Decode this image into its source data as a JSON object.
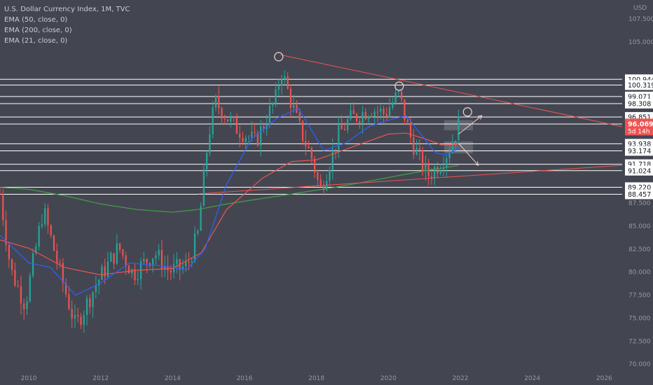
{
  "chart_data": {
    "type": "candlestick",
    "title": "U.S. Dollar Currency Index, 1M, TVC",
    "indicators": [
      "EMA (50, close, 0)",
      "EMA (200, close, 0)",
      "EMA (21, close, 0)"
    ],
    "currency_label": "USD",
    "x_tick_labels": [
      "2010",
      "2012",
      "2014",
      "2016",
      "2018",
      "2020",
      "2022",
      "2024",
      "2026"
    ],
    "x_tick_years": [
      2010,
      2012,
      2014,
      2016,
      2018,
      2020,
      2022,
      2024,
      2026
    ],
    "xlim": [
      2009.2,
      2026.5
    ],
    "y_tick_labels": [
      "107.500",
      "105.000",
      "87.500",
      "85.000",
      "82.500",
      "80.000",
      "77.500",
      "75.000",
      "72.500",
      "70.000"
    ],
    "y_tick_values": [
      107.5,
      105.0,
      87.5,
      85.0,
      82.5,
      80.0,
      77.5,
      75.0,
      72.5,
      70.0
    ],
    "ylim": [
      68.8,
      108.8
    ],
    "horizontal_levels": [
      "100.944",
      "100.319",
      "99.071",
      "98.308",
      "96.851",
      "96.088",
      "93.938",
      "93.174",
      "91.718",
      "91.024",
      "89.220",
      "88.457"
    ],
    "current_price": {
      "label": "96.069",
      "value": 96.069,
      "countdown": "5d 14h",
      "color": "#ef5350"
    },
    "close_series": {
      "years": [
        2009.2,
        2009.5,
        2009.9,
        2010.4,
        2010.9,
        2011.3,
        2011.9,
        2012.5,
        2012.9,
        2013.5,
        2013.9,
        2014.4,
        2014.7,
        2015.0,
        2015.2,
        2015.7,
        2016.3,
        2016.9,
        2017.0,
        2017.5,
        2017.9,
        2018.1,
        2018.6,
        2018.9,
        2019.5,
        2019.9,
        2020.2,
        2020.3,
        2020.6,
        2020.9,
        2021.1,
        2021.3,
        2021.6,
        2021.8,
        2021.95
      ],
      "values": [
        88.5,
        80.2,
        76.5,
        86.8,
        79.5,
        74.1,
        78.9,
        82.7,
        79.8,
        82.1,
        80.1,
        80.6,
        84.1,
        95.0,
        98.4,
        95.9,
        94.1,
        99.1,
        102.2,
        95.9,
        92.1,
        88.8,
        94.8,
        96.5,
        97.8,
        97.2,
        98.9,
        99.2,
        94.8,
        91.9,
        90.5,
        91.3,
        92.8,
        94.3,
        96.07
      ]
    },
    "ema_21": {
      "color": "#2962ff",
      "years": [
        2009.2,
        2010.0,
        2010.6,
        2011.3,
        2012.0,
        2012.8,
        2013.6,
        2014.4,
        2014.9,
        2015.5,
        2016.2,
        2016.9,
        2017.5,
        2018.2,
        2018.8,
        2019.5,
        2020.0,
        2020.5,
        2020.9,
        2021.3,
        2021.6,
        2021.95
      ],
      "values": [
        84.0,
        81.0,
        80.5,
        77.5,
        78.8,
        81.0,
        80.7,
        80.3,
        82.5,
        89.5,
        94.5,
        96.7,
        97.8,
        93.2,
        94.0,
        95.9,
        96.5,
        97.0,
        95.0,
        93.0,
        92.7,
        93.5
      ]
    },
    "ema_50": {
      "color": "#ef5350",
      "years": [
        2009.2,
        2010.0,
        2011.0,
        2012.0,
        2013.0,
        2014.0,
        2014.8,
        2015.5,
        2016.5,
        2017.3,
        2018.0,
        2019.0,
        2020.0,
        2020.5,
        2021.0,
        2021.5,
        2021.95
      ],
      "values": [
        83.5,
        82.6,
        80.5,
        79.7,
        80.2,
        80.4,
        82.1,
        86.8,
        90.2,
        92.0,
        92.2,
        93.6,
        95.0,
        95.1,
        94.5,
        93.8,
        93.9
      ]
    },
    "ema_200": {
      "color": "#43a047",
      "years": [
        2009.2,
        2010.0,
        2011.0,
        2012.0,
        2013.0,
        2014.0,
        2014.7,
        2015.5,
        2016.5,
        2017.5,
        2018.5,
        2019.5,
        2020.3,
        2021.0,
        2021.95
      ],
      "values": [
        89.2,
        89.0,
        88.3,
        87.4,
        86.8,
        86.5,
        86.8,
        87.4,
        88.0,
        88.6,
        89.2,
        89.9,
        90.5,
        91.0,
        91.6
      ]
    },
    "trendlines": {
      "descending_resistance": {
        "color": "#ef5350",
        "start": [
          2017.0,
          103.6
        ],
        "end": [
          2026.5,
          95.8
        ]
      },
      "ascending_support": {
        "color": "#ef5350",
        "start": [
          2014.7,
          88.5
        ],
        "end": [
          2026.5,
          91.6
        ]
      }
    },
    "marked_pivots": [
      [
        2016.95,
        103.4
      ],
      [
        2020.3,
        100.2
      ],
      [
        2022.2,
        97.4
      ]
    ],
    "projection_arrows": [
      {
        "from": [
          2021.95,
          95.0
        ],
        "to": [
          2022.6,
          97.0
        ]
      },
      {
        "from": [
          2021.95,
          94.0
        ],
        "to": [
          2022.5,
          91.6
        ]
      }
    ],
    "supply_zones": [
      [
        96.5,
        95.4
      ],
      [
        94.2,
        92.9
      ]
    ],
    "colors": {
      "up": "#26a69a",
      "down": "#ef5350",
      "background": "#434651",
      "level_line": "#ffffff"
    }
  }
}
